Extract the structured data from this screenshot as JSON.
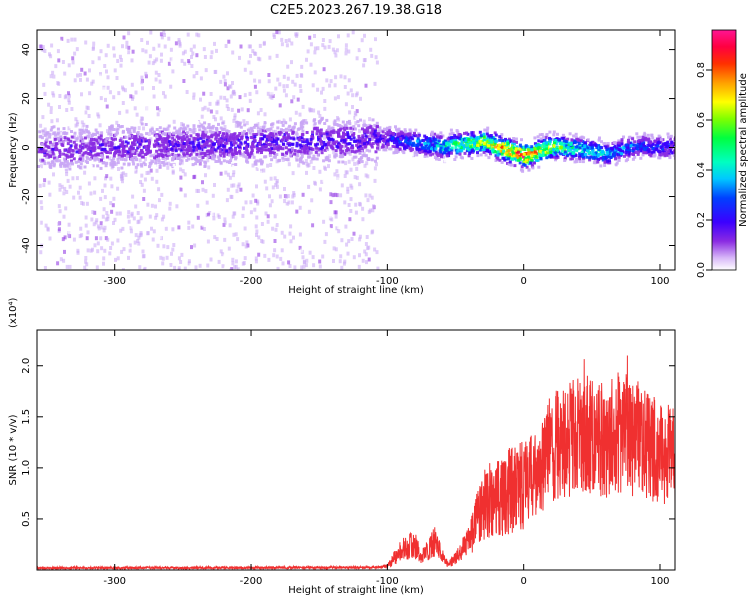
{
  "title": "C2E5.2023.267.19.38.G18",
  "chart_data": [
    {
      "type": "heatmap",
      "xlabel": "Height of straight line (km)",
      "ylabel": "Frequency (Hz)",
      "xlim": [
        -357,
        111
      ],
      "ylim": [
        -50,
        48
      ],
      "xticks": [
        -300,
        -200,
        -100,
        0,
        100
      ],
      "yticks": [
        -40,
        -20,
        0,
        20,
        40
      ],
      "colorbar": {
        "label": "Normalized spectral amplitude",
        "range": [
          0.0,
          0.96
        ],
        "ticks": [
          0.0,
          0.2,
          0.4,
          0.6,
          0.8
        ],
        "colors": [
          "#ffffff",
          "#c9a6f5",
          "#8a2be2",
          "#3b00ff",
          "#0040ff",
          "#00c8ff",
          "#00ffc0",
          "#00ff40",
          "#80ff00",
          "#ffff00",
          "#ffa000",
          "#ff3000",
          "#ff0040",
          "#ff1493"
        ]
      },
      "description_of_field": {
        "scattered_region_x": [
          -357,
          -108
        ],
        "scattered_level": 0.1,
        "band_center_hz": [
          [
            -357,
            0
          ],
          [
            -100,
            4
          ],
          [
            -60,
            1
          ],
          [
            -30,
            3
          ],
          [
            0,
            -3
          ],
          [
            20,
            1
          ],
          [
            40,
            0
          ],
          [
            60,
            -2
          ],
          [
            80,
            1
          ],
          [
            111,
            1
          ]
        ],
        "band_peak_level": [
          [
            -357,
            0.2
          ],
          [
            -108,
            0.25
          ],
          [
            -90,
            0.35
          ],
          [
            -60,
            0.5
          ],
          [
            -20,
            0.85
          ],
          [
            0,
            0.95
          ],
          [
            30,
            0.6
          ],
          [
            80,
            0.35
          ],
          [
            111,
            0.3
          ]
        ]
      }
    },
    {
      "type": "line",
      "xlabel": "Height of straight line (km)",
      "ylabel": "SNR (10 * v/v)",
      "y_multiplier": "(x10⁴)",
      "xlim": [
        -357,
        111
      ],
      "ylim": [
        0,
        23500
      ],
      "xticks": [
        -300,
        -200,
        -100,
        0,
        100
      ],
      "yticks": [
        5000,
        10000,
        15000,
        20000
      ],
      "ytick_labels": [
        "0.5",
        "1.0",
        "1.5",
        "2.0"
      ],
      "series": [
        {
          "color": "#f03030",
          "points": [
            [
              -357,
              200
            ],
            [
              -110,
              250
            ],
            [
              -100,
              350
            ],
            [
              -90,
              2000
            ],
            [
              -80,
              2500
            ],
            [
              -75,
              1200
            ],
            [
              -65,
              2800
            ],
            [
              -55,
              500
            ],
            [
              -48,
              1500
            ],
            [
              -40,
              2800
            ],
            [
              -30,
              6500
            ],
            [
              -20,
              7000
            ],
            [
              -10,
              7800
            ],
            [
              0,
              8800
            ],
            [
              10,
              9500
            ],
            [
              20,
              12000
            ],
            [
              30,
              12500
            ],
            [
              40,
              13500
            ],
            [
              50,
              13000
            ],
            [
              60,
              12500
            ],
            [
              70,
              13500
            ],
            [
              80,
              13000
            ],
            [
              90,
              12500
            ],
            [
              100,
              11500
            ],
            [
              111,
              11000
            ]
          ]
        }
      ]
    }
  ]
}
